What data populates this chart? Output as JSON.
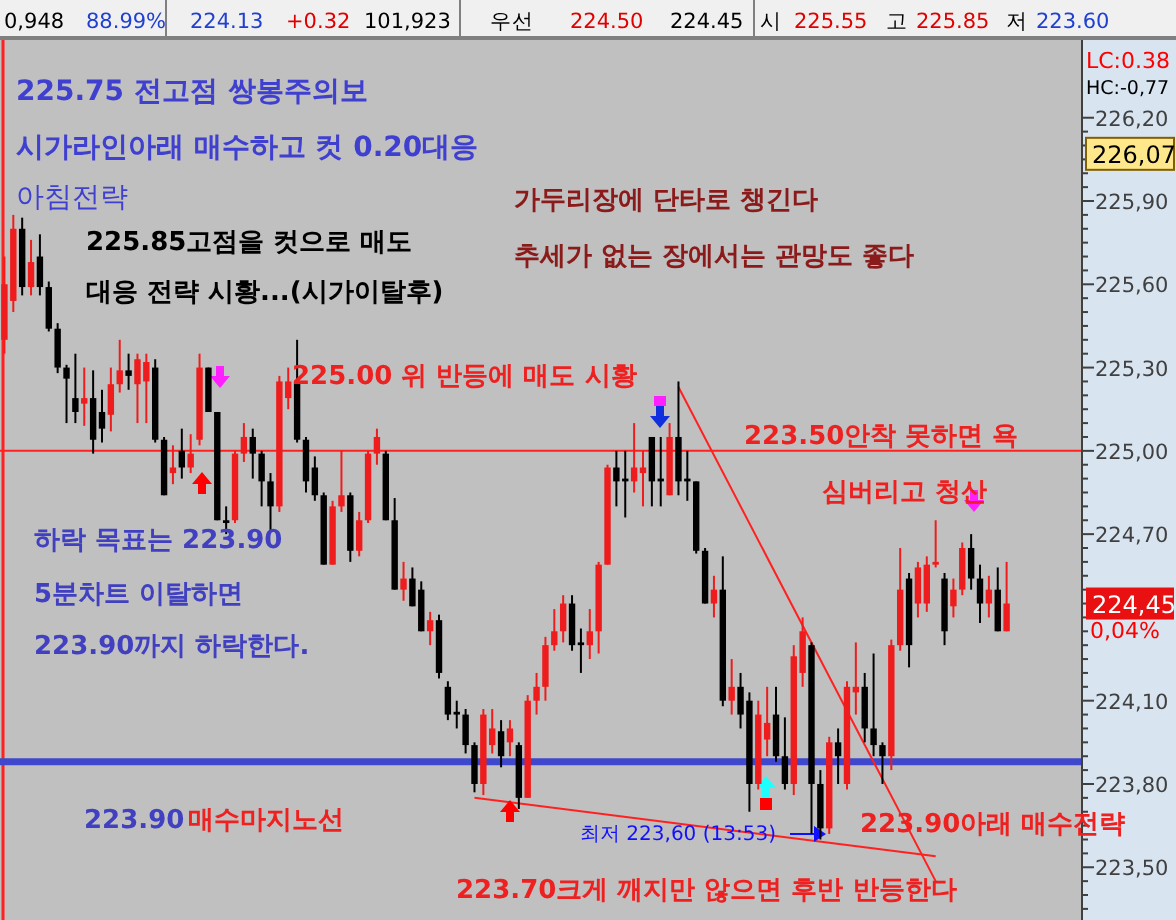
{
  "chart_data": {
    "type": "candlestick",
    "categories": [
      null,
      null,
      null,
      null,
      null,
      null,
      null,
      null,
      null,
      null,
      null,
      null,
      null,
      null,
      null,
      null,
      null,
      null,
      null,
      null,
      null,
      null,
      null,
      null,
      null,
      null,
      null,
      null,
      null,
      null,
      null,
      null,
      null,
      null,
      null,
      null,
      null,
      null,
      null,
      null,
      null,
      null,
      null,
      null,
      null,
      null,
      null,
      null,
      null,
      null,
      null,
      null,
      null,
      null,
      null,
      null,
      null,
      null,
      null,
      null,
      null,
      null,
      null,
      null,
      null,
      null,
      null,
      null,
      null,
      null,
      null,
      null,
      null,
      null,
      null,
      null,
      null,
      null,
      null,
      null,
      null,
      null,
      null,
      null,
      null,
      null,
      null,
      null,
      null,
      null,
      null,
      null,
      null,
      null,
      null,
      null,
      null,
      null,
      null,
      null,
      null,
      null,
      null,
      null,
      null,
      null,
      null,
      null,
      null,
      null,
      null,
      null,
      null,
      null,
      null,
      null,
      null,
      null,
      null,
      null,
      null,
      null
    ],
    "ohlc": [
      [
        225.4,
        225.7,
        225.35,
        225.6
      ],
      [
        225.54,
        225.85,
        225.5,
        225.8
      ],
      [
        225.8,
        225.84,
        225.56,
        225.59
      ],
      [
        225.59,
        225.76,
        225.56,
        225.68
      ],
      [
        225.7,
        225.78,
        225.56,
        225.59
      ],
      [
        225.59,
        225.61,
        225.43,
        225.44
      ],
      [
        225.44,
        225.46,
        225.28,
        225.3
      ],
      [
        225.3,
        225.31,
        225.1,
        225.26
      ],
      [
        225.19,
        225.35,
        225.1,
        225.14
      ],
      [
        225.17,
        225.3,
        225.09,
        225.19
      ],
      [
        225.19,
        225.29,
        224.99,
        225.04
      ],
      [
        225.14,
        225.22,
        225.03,
        225.08
      ],
      [
        225.13,
        225.3,
        225.07,
        225.24
      ],
      [
        225.24,
        225.4,
        225.21,
        225.29
      ],
      [
        225.29,
        225.35,
        225.22,
        225.27
      ],
      [
        225.24,
        225.35,
        225.1,
        225.33
      ],
      [
        225.25,
        225.35,
        225.1,
        225.32
      ],
      [
        225.3,
        225.33,
        225.03,
        225.04
      ],
      [
        225.04,
        225.05,
        224.84,
        224.84
      ],
      [
        224.92,
        225.02,
        224.88,
        224.94
      ],
      [
        225.0,
        225.08,
        224.9,
        224.94
      ],
      [
        224.94,
        225.06,
        224.92,
        224.99
      ],
      [
        225.04,
        225.35,
        225.02,
        225.3
      ],
      [
        225.3,
        225.3,
        225.14,
        225.14
      ],
      [
        225.14,
        225.14,
        224.75,
        224.75
      ],
      [
        224.75,
        224.8,
        224.7,
        224.74
      ],
      [
        224.75,
        225.0,
        224.74,
        224.99
      ],
      [
        224.99,
        225.1,
        224.96,
        225.05
      ],
      [
        225.05,
        225.08,
        224.9,
        224.99
      ],
      [
        224.99,
        225.0,
        224.8,
        224.89
      ],
      [
        224.89,
        224.92,
        224.71,
        224.8
      ],
      [
        224.8,
        225.27,
        224.78,
        225.25
      ],
      [
        225.19,
        225.3,
        225.15,
        225.25
      ],
      [
        225.25,
        225.4,
        225.03,
        225.04
      ],
      [
        225.04,
        225.05,
        224.85,
        224.89
      ],
      [
        224.94,
        224.98,
        224.82,
        224.84
      ],
      [
        224.84,
        224.85,
        224.59,
        224.59
      ],
      [
        224.59,
        224.82,
        224.59,
        224.8
      ],
      [
        224.8,
        225.0,
        224.78,
        224.84
      ],
      [
        224.84,
        224.85,
        224.6,
        224.64
      ],
      [
        224.64,
        224.78,
        224.62,
        224.75
      ],
      [
        224.75,
        225.0,
        224.74,
        224.99
      ],
      [
        224.99,
        225.08,
        224.95,
        225.05
      ],
      [
        224.99,
        225.0,
        224.75,
        224.75
      ],
      [
        224.75,
        224.83,
        224.5,
        224.5
      ],
      [
        224.5,
        224.6,
        224.46,
        224.54
      ],
      [
        224.54,
        224.58,
        224.44,
        224.44
      ],
      [
        224.5,
        224.53,
        224.35,
        224.35
      ],
      [
        224.35,
        224.42,
        224.3,
        224.39
      ],
      [
        224.39,
        224.41,
        224.18,
        224.2
      ],
      [
        224.15,
        224.17,
        224.03,
        224.05
      ],
      [
        224.06,
        224.1,
        224.0,
        224.05
      ],
      [
        224.05,
        224.07,
        223.91,
        223.94
      ],
      [
        223.94,
        223.95,
        223.77,
        223.8
      ],
      [
        223.8,
        224.07,
        223.76,
        224.05
      ],
      [
        223.94,
        224.07,
        223.91,
        224.0
      ],
      [
        223.99,
        224.03,
        223.86,
        223.9
      ],
      [
        223.95,
        224.03,
        223.9,
        224.0
      ],
      [
        223.94,
        223.95,
        223.71,
        223.75
      ],
      [
        223.75,
        224.12,
        223.75,
        224.1
      ],
      [
        224.1,
        224.2,
        224.05,
        224.15
      ],
      [
        224.15,
        224.33,
        224.1,
        224.3
      ],
      [
        224.3,
        224.43,
        224.28,
        224.35
      ],
      [
        224.35,
        224.48,
        224.31,
        224.45
      ],
      [
        224.45,
        224.48,
        224.28,
        224.3
      ],
      [
        224.31,
        224.36,
        224.2,
        224.3
      ],
      [
        224.3,
        224.43,
        224.25,
        224.35
      ],
      [
        224.35,
        224.6,
        224.27,
        224.59
      ],
      [
        224.59,
        224.95,
        224.59,
        224.94
      ],
      [
        224.94,
        225.0,
        224.8,
        224.89
      ],
      [
        224.9,
        225.0,
        224.76,
        224.89
      ],
      [
        224.89,
        225.1,
        224.85,
        224.94
      ],
      [
        224.92,
        225.0,
        224.8,
        224.94
      ],
      [
        225.05,
        225.05,
        224.8,
        224.89
      ],
      [
        224.9,
        225.05,
        224.8,
        224.89
      ],
      [
        224.84,
        225.1,
        224.84,
        225.05
      ],
      [
        225.05,
        225.25,
        224.84,
        224.89
      ],
      [
        224.9,
        225.0,
        224.82,
        224.89
      ],
      [
        224.89,
        224.89,
        224.63,
        224.64
      ],
      [
        224.64,
        224.65,
        224.45,
        224.45
      ],
      [
        224.45,
        224.55,
        224.4,
        224.5
      ],
      [
        224.5,
        224.62,
        224.08,
        224.1
      ],
      [
        224.1,
        224.25,
        224.05,
        224.15
      ],
      [
        224.15,
        224.2,
        224.0,
        224.05
      ],
      [
        224.1,
        224.13,
        223.7,
        223.8
      ],
      [
        223.8,
        224.1,
        223.78,
        224.05
      ],
      [
        223.96,
        224.15,
        223.9,
        224.02
      ],
      [
        224.05,
        224.15,
        223.88,
        223.9
      ],
      [
        223.9,
        224.04,
        223.78,
        223.8
      ],
      [
        223.8,
        224.3,
        223.76,
        224.26
      ],
      [
        224.2,
        224.4,
        224.15,
        224.35
      ],
      [
        224.3,
        224.31,
        223.62,
        223.8
      ],
      [
        223.8,
        223.85,
        223.6,
        223.64
      ],
      [
        223.64,
        223.97,
        223.62,
        223.95
      ],
      [
        223.95,
        224.0,
        223.8,
        223.9
      ],
      [
        223.8,
        224.17,
        223.78,
        224.15
      ],
      [
        224.13,
        224.31,
        224.05,
        224.15
      ],
      [
        224.15,
        224.2,
        223.95,
        224.0
      ],
      [
        224.0,
        224.27,
        223.9,
        223.94
      ],
      [
        223.94,
        223.95,
        223.8,
        223.9
      ],
      [
        223.9,
        224.32,
        223.85,
        224.3
      ],
      [
        224.3,
        224.65,
        224.28,
        224.5
      ],
      [
        224.54,
        224.56,
        224.22,
        224.3
      ],
      [
        224.45,
        224.6,
        224.4,
        224.58
      ],
      [
        224.45,
        224.62,
        224.42,
        224.59
      ],
      [
        224.6,
        224.75,
        224.58,
        224.59
      ],
      [
        224.54,
        224.56,
        224.3,
        224.35
      ],
      [
        224.44,
        224.54,
        224.4,
        224.5
      ],
      [
        224.5,
        224.67,
        224.48,
        224.65
      ],
      [
        224.65,
        224.7,
        224.5,
        224.54
      ],
      [
        224.54,
        224.59,
        224.38,
        224.45
      ],
      [
        224.45,
        224.55,
        224.4,
        224.5
      ],
      [
        224.5,
        224.58,
        224.35,
        224.35
      ],
      [
        224.35,
        224.6,
        224.35,
        224.45
      ],
      null,
      null,
      null,
      null,
      null,
      null,
      null,
      null
    ],
    "colors": [
      "#ee1c1c",
      "#ee1c1c",
      "#000000",
      "#ee1c1c",
      "#000000",
      "#000000",
      "#000000",
      "#000000",
      "#000000",
      "#ee1c1c",
      "#000000",
      "#000000",
      "#ee1c1c",
      "#ee1c1c",
      "#000000",
      "#ee1c1c",
      "#ee1c1c",
      "#000000",
      "#000000",
      "#ee1c1c",
      "#000000",
      "#ee1c1c",
      "#ee1c1c",
      "#000000",
      "#000000",
      "#000000",
      "#ee1c1c",
      "#ee1c1c",
      "#000000",
      "#000000",
      "#000000",
      "#ee1c1c",
      "#ee1c1c",
      "#000000",
      "#000000",
      "#000000",
      "#000000",
      "#ee1c1c",
      "#ee1c1c",
      "#000000",
      "#ee1c1c",
      "#ee1c1c",
      "#ee1c1c",
      "#000000",
      "#000000",
      "#ee1c1c",
      "#000000",
      "#000000",
      "#ee1c1c",
      "#000000",
      "#000000",
      "#000000",
      "#000000",
      "#000000",
      "#ee1c1c",
      "#ee1c1c",
      "#000000",
      "#ee1c1c",
      "#000000",
      "#ee1c1c",
      "#ee1c1c",
      "#ee1c1c",
      "#ee1c1c",
      "#ee1c1c",
      "#000000",
      "#000000",
      "#ee1c1c",
      "#ee1c1c",
      "#ee1c1c",
      "#000000",
      "#000000",
      "#ee1c1c",
      "#ee1c1c",
      "#000000",
      "#000000",
      "#ee1c1c",
      "#000000",
      "#000000",
      "#000000",
      "#000000",
      "#ee1c1c",
      "#000000",
      "#ee1c1c",
      "#000000",
      "#000000",
      "#ee1c1c",
      "#ee1c1c",
      "#000000",
      "#000000",
      "#ee1c1c",
      "#ee1c1c",
      "#000000",
      "#000000",
      "#ee1c1c",
      "#000000",
      "#ee1c1c",
      "#ee1c1c",
      "#000000",
      "#000000",
      "#000000",
      "#ee1c1c",
      "#ee1c1c",
      "#000000",
      "#ee1c1c",
      "#ee1c1c",
      "#ee1c1c",
      "#000000",
      "#ee1c1c",
      "#ee1c1c",
      "#000000",
      "#000000",
      "#ee1c1c",
      "#000000",
      "#ee1c1c",
      null,
      null,
      null,
      null,
      null,
      null,
      null,
      null
    ],
    "series": [
      {
        "type": "line",
        "color": "#ff2020",
        "values": [
          null,
          null,
          null,
          null,
          null,
          null,
          null,
          null,
          null,
          null,
          null,
          null,
          null,
          null,
          null,
          null,
          null,
          null,
          null,
          null,
          null,
          null,
          null,
          null,
          null,
          null,
          null,
          null,
          null,
          null,
          null,
          null,
          null,
          null,
          null,
          null,
          null,
          null,
          null,
          null,
          null,
          null,
          null,
          null,
          null,
          null,
          null,
          null,
          null,
          null,
          null,
          null,
          null,
          null,
          null,
          null,
          null,
          null,
          null,
          null,
          null,
          null,
          null,
          null,
          null,
          null,
          null,
          null,
          null,
          null,
          null,
          null,
          null,
          null,
          null,
          null,
          225.23,
          null,
          null,
          null,
          null,
          null,
          null,
          null,
          null,
          null,
          null,
          null,
          null,
          null,
          null,
          null,
          null,
          null,
          null,
          null,
          null,
          null,
          null,
          null,
          null,
          null,
          null,
          null,
          null,
          223.45,
          null,
          null,
          null,
          null,
          null,
          null,
          null,
          null,
          null,
          null,
          null,
          null,
          null,
          null,
          null,
          null
        ]
      },
      {
        "type": "line",
        "color": "#ff2020",
        "values": [
          null,
          null,
          null,
          null,
          null,
          null,
          null,
          null,
          null,
          null,
          null,
          null,
          null,
          null,
          null,
          null,
          null,
          null,
          null,
          null,
          null,
          null,
          null,
          null,
          null,
          null,
          null,
          null,
          null,
          null,
          null,
          null,
          null,
          null,
          null,
          null,
          null,
          null,
          null,
          null,
          null,
          null,
          null,
          null,
          null,
          null,
          null,
          null,
          null,
          null,
          null,
          null,
          null,
          223.75,
          null,
          null,
          null,
          null,
          null,
          null,
          null,
          null,
          null,
          null,
          null,
          null,
          null,
          null,
          null,
          null,
          null,
          null,
          null,
          null,
          null,
          null,
          null,
          null,
          null,
          null,
          null,
          null,
          null,
          null,
          null,
          null,
          null,
          null,
          null,
          null,
          null,
          null,
          null,
          null,
          null,
          null,
          null,
          null,
          null,
          null,
          null,
          null,
          null,
          null,
          null,
          223.54,
          null,
          null,
          null,
          null,
          null,
          null,
          null,
          null,
          null,
          null,
          null,
          null,
          null,
          null,
          null,
          null
        ]
      }
    ],
    "ref_lines": [
      {
        "axis": "y",
        "value": 225.0,
        "color": "#ff2020"
      },
      {
        "axis": "y",
        "value": 223.88,
        "color": "#3f48cc"
      }
    ],
    "ylim": [
      223.31,
      226.48
    ],
    "yticks": [
      {
        "value": 223.35,
        "label": null
      },
      {
        "value": 223.4,
        "label": null
      },
      {
        "value": 223.45,
        "label": null
      },
      {
        "value": 223.5,
        "label": "223,50"
      },
      {
        "value": 223.55,
        "label": null
      },
      {
        "value": 223.6,
        "label": null
      },
      {
        "value": 223.65,
        "label": null
      },
      {
        "value": 223.7,
        "label": null
      },
      {
        "value": 223.75,
        "label": null
      },
      {
        "value": 223.8,
        "label": "223,80"
      },
      {
        "value": 223.85,
        "label": null
      },
      {
        "value": 223.9,
        "label": null
      },
      {
        "value": 223.95,
        "label": null
      },
      {
        "value": 224.0,
        "label": null
      },
      {
        "value": 224.05,
        "label": null
      },
      {
        "value": 224.1,
        "label": "224,10"
      },
      {
        "value": 224.15,
        "label": null
      },
      {
        "value": 224.2,
        "label": null
      },
      {
        "value": 224.25,
        "label": null
      },
      {
        "value": 224.3,
        "label": null
      },
      {
        "value": 224.35,
        "label": null
      },
      {
        "value": 224.4,
        "label": null
      },
      {
        "value": 224.45,
        "label": null
      },
      {
        "value": 224.5,
        "label": null
      },
      {
        "value": 224.55,
        "label": null
      },
      {
        "value": 224.6,
        "label": null
      },
      {
        "value": 224.65,
        "label": null
      },
      {
        "value": 224.7,
        "label": "224,70"
      },
      {
        "value": 224.75,
        "label": null
      },
      {
        "value": 224.8,
        "label": null
      },
      {
        "value": 224.85,
        "label": null
      },
      {
        "value": 224.9,
        "label": null
      },
      {
        "value": 224.95,
        "label": null
      },
      {
        "value": 225.0,
        "label": "225,00"
      },
      {
        "value": 225.05,
        "label": null
      },
      {
        "value": 225.1,
        "label": null
      },
      {
        "value": 225.15,
        "label": null
      },
      {
        "value": 225.2,
        "label": null
      },
      {
        "value": 225.25,
        "label": null
      },
      {
        "value": 225.3,
        "label": "225,30"
      },
      {
        "value": 225.35,
        "label": null
      },
      {
        "value": 225.4,
        "label": null
      },
      {
        "value": 225.45,
        "label": null
      },
      {
        "value": 225.5,
        "label": null
      },
      {
        "value": 225.55,
        "label": null
      },
      {
        "value": 225.6,
        "label": "225,60"
      },
      {
        "value": 225.65,
        "label": null
      },
      {
        "value": 225.7,
        "label": null
      },
      {
        "value": 225.75,
        "label": null
      },
      {
        "value": 225.8,
        "label": null
      },
      {
        "value": 225.85,
        "label": null
      },
      {
        "value": 225.9,
        "label": "225,90"
      },
      {
        "value": 225.95,
        "label": null
      },
      {
        "value": 226.0,
        "label": null
      },
      {
        "value": 226.05,
        "label": null
      },
      {
        "value": 226.1,
        "label": null
      },
      {
        "value": 226.15,
        "label": null
      },
      {
        "value": 226.2,
        "label": "226,20"
      }
    ],
    "tick_labels": "y",
    "grid": false,
    "annotations": [
      "0,948",
      "88.99%",
      "224.13",
      "+0.32",
      "101,923",
      "우선",
      "224.50",
      "224.45",
      "시",
      "225.55",
      "고",
      "225.85",
      "저",
      "223.60",
      "LC:0.38",
      "HC:-0,77",
      "226,07",
      "224,45",
      "0,04%",
      "225.75 전고점 쌍봉주의보",
      "시가라인아래 매수하고 컷 0.20대응",
      "아침전략",
      "225.85고점을 컷으로 매도",
      "대응 전략 시황...(시가이탈후)",
      "가두리장에 단타로 챙긴다",
      "추세가 없는 장에서는 관망도 좋다",
      "225.00 위 반등에 매도 시황",
      "223.50안착 못하면 욕",
      "심버리고 청산",
      "하락 목표는 223.90",
      "5분차트 이탈하면",
      "223.90까지 하락한다.",
      "223.90",
      "매수마지노선",
      "최저 223,60 (13:53)",
      "223.90아래 매수전략",
      "223.70크게 깨지만 않으면 후반 반등한다"
    ]
  }
}
